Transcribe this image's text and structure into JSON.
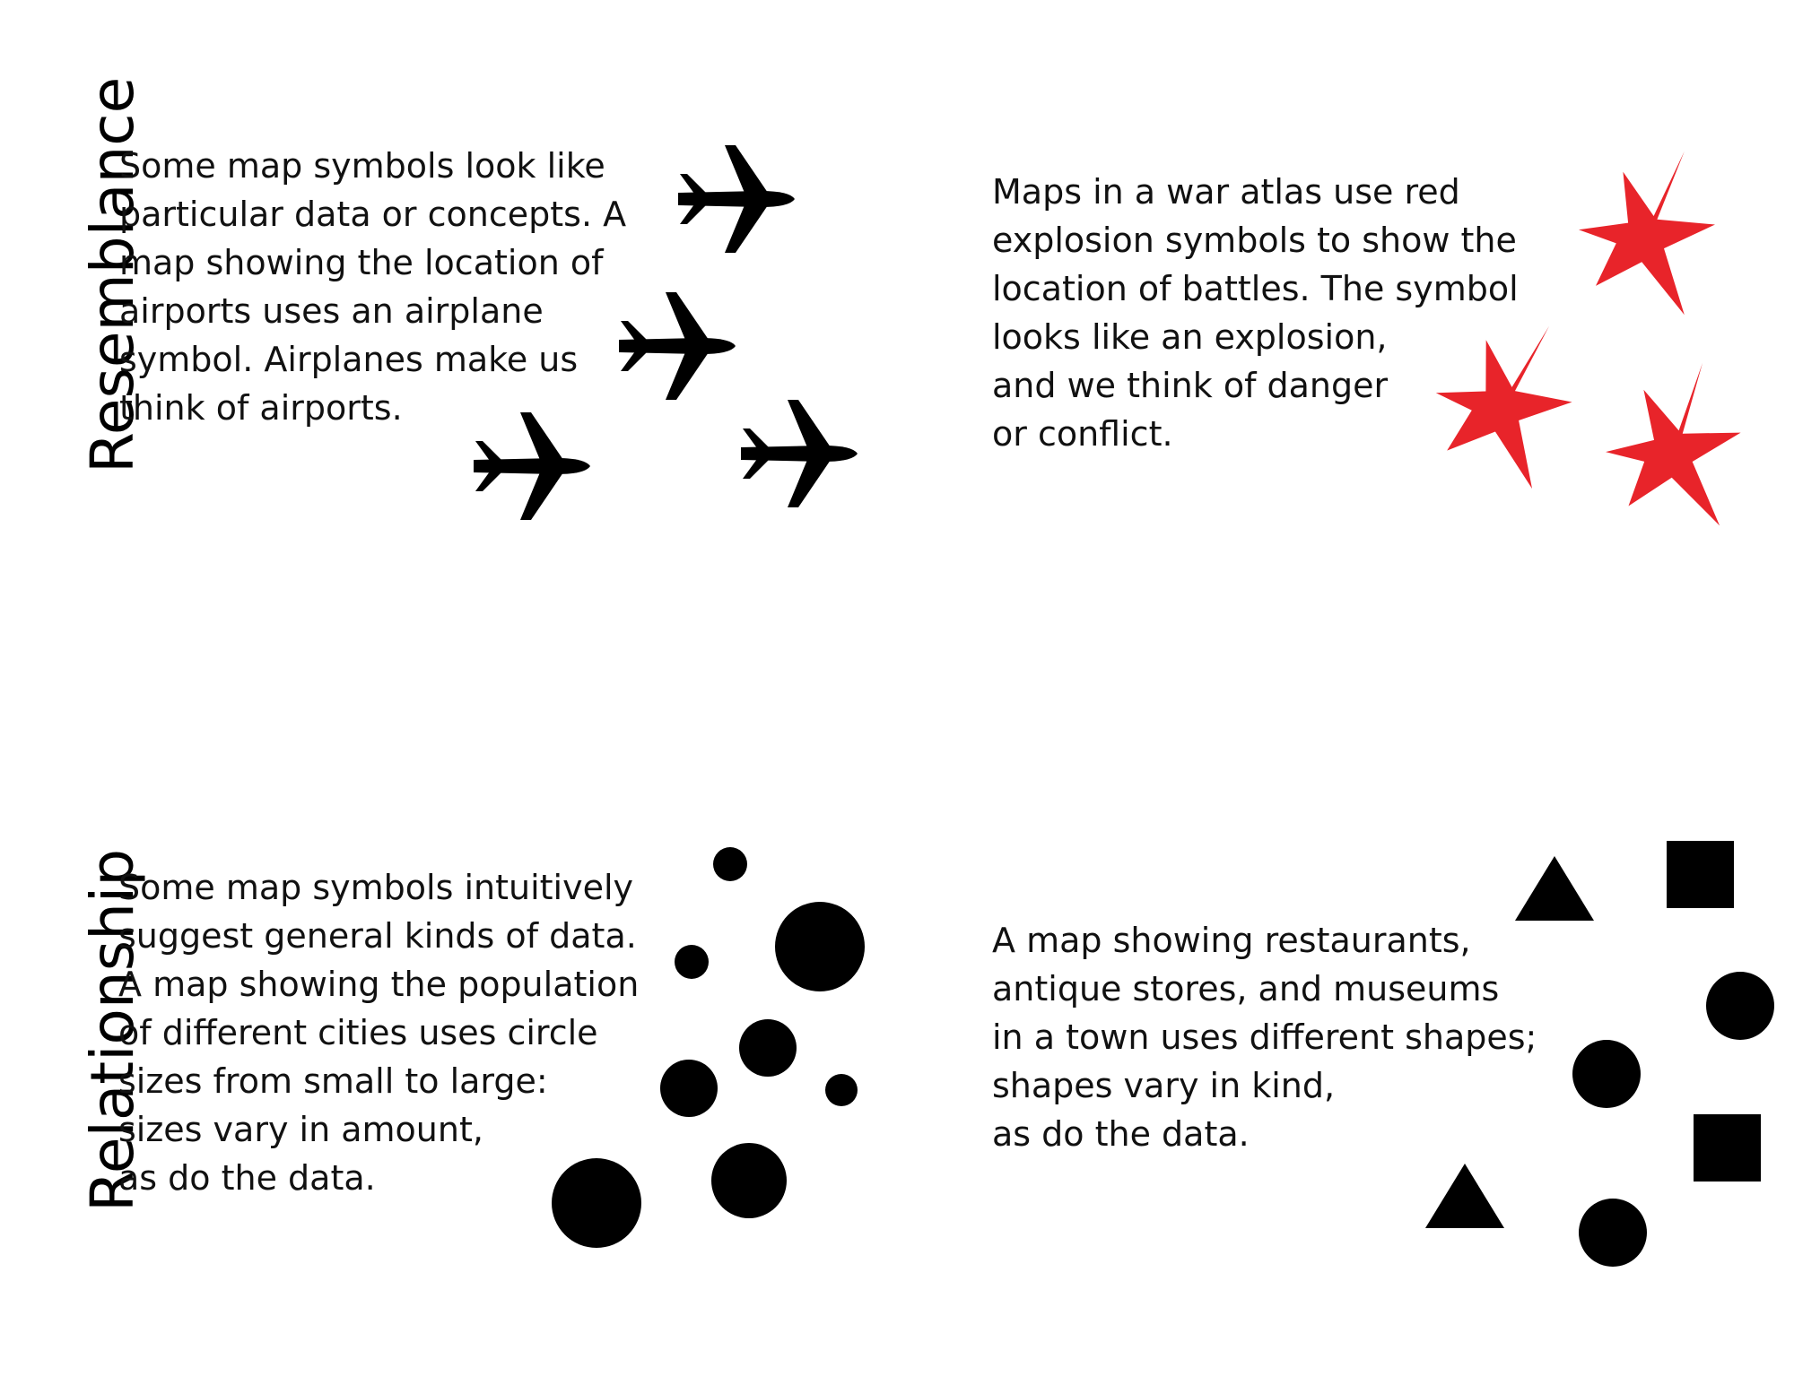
{
  "sections": {
    "resemblance": {
      "label": "Resemblance",
      "airports_text": [
        "Some map symbols look like",
        "particular data or concepts. A",
        "map showing the location of",
        "airports uses an airplane",
        "symbol. Airplanes make us",
        "think of airports."
      ],
      "explosion_text": [
        "Maps in a war atlas use red",
        "explosion symbols to show the",
        "location of battles. The symbol",
        "looks like an explosion,",
        "and we think of danger",
        "or conflict."
      ],
      "airplane_icon": "airplane-icon",
      "explosion_icon": "explosion-star-icon",
      "airplane_color": "#000000",
      "explosion_color": "#e8242a"
    },
    "relationship": {
      "label": "Relationship",
      "circles_text": [
        "Some map symbols intuitively",
        "suggest general kinds of data.",
        "A map showing the population",
        "of different cities uses circle",
        "sizes from small to large:",
        "sizes vary in amount,",
        "as do the data."
      ],
      "shapes_text": [
        "A map showing restaurants,",
        "antique stores, and museums",
        "in a town uses different shapes;",
        "shapes vary in kind,",
        "as do the data."
      ],
      "circle_icon": "circle-icon",
      "triangle_icon": "triangle-icon",
      "square_icon": "square-icon",
      "symbol_color": "#000000"
    }
  }
}
